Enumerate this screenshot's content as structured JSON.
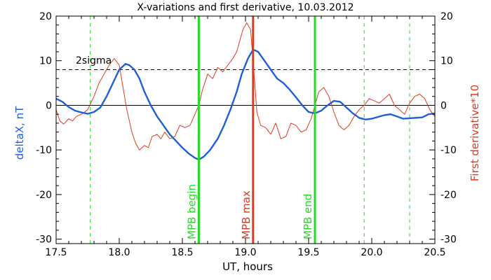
{
  "chart_data": {
    "type": "line",
    "title": "X-variations and first derivative, 10.03.2012",
    "xlabel": "UT, hours",
    "ylabel_left": "deltaX, nT",
    "ylabel_right": "First derivative*10",
    "xlim": [
      17.5,
      20.5
    ],
    "ylim": [
      -31,
      20
    ],
    "xticks": [
      17.5,
      18.0,
      18.5,
      19.0,
      19.5,
      20.0,
      20.5
    ],
    "yticks": [
      -30,
      -20,
      -10,
      0,
      10,
      20
    ],
    "grid": false,
    "threshold": {
      "label": "2sigma",
      "value": 8
    },
    "zero_line": 0,
    "colors": {
      "deltaX": "#1f5fd6",
      "derivative": "#e03a1e",
      "mpb_max": "#e03a1e",
      "mpb_bounds": "#22dd22",
      "dashed_markers": "#22dd22",
      "axes": "#000000"
    },
    "markers": [
      {
        "x": 18.63,
        "label": "MPB begin",
        "color": "#22dd22",
        "style": "solid"
      },
      {
        "x": 19.06,
        "label": "MPB max",
        "color": "#e03a1e",
        "style": "solid"
      },
      {
        "x": 19.55,
        "label": "MPB end",
        "color": "#22dd22",
        "style": "solid"
      }
    ],
    "dashed_markers": [
      17.77,
      19.94,
      20.3
    ],
    "series": [
      {
        "name": "deltaX, nT",
        "color": "#1f5fd6",
        "x": [
          17.5,
          17.55,
          17.6,
          17.65,
          17.7,
          17.75,
          17.8,
          17.85,
          17.9,
          17.95,
          18.0,
          18.05,
          18.08,
          18.12,
          18.16,
          18.2,
          18.25,
          18.3,
          18.35,
          18.4,
          18.45,
          18.5,
          18.55,
          18.6,
          18.63,
          18.67,
          18.72,
          18.78,
          18.83,
          18.88,
          18.93,
          18.97,
          19.02,
          19.06,
          19.1,
          19.15,
          19.2,
          19.25,
          19.3,
          19.35,
          19.4,
          19.45,
          19.5,
          19.55,
          19.6,
          19.65,
          19.7,
          19.75,
          19.8,
          19.85,
          19.9,
          19.95,
          20.0,
          20.05,
          20.1,
          20.15,
          20.2,
          20.25,
          20.3,
          20.35,
          20.4,
          20.45,
          20.5
        ],
        "y": [
          1.5,
          0.8,
          -0.4,
          -1.2,
          -1.6,
          -1.9,
          -1.5,
          -0.5,
          2.0,
          5.0,
          8.0,
          9.3,
          9.0,
          8.0,
          6.0,
          3.0,
          0.0,
          -2.5,
          -4.5,
          -6.5,
          -8.0,
          -9.5,
          -10.8,
          -11.8,
          -12.2,
          -11.5,
          -10.0,
          -7.5,
          -4.5,
          -1.0,
          3.0,
          7.0,
          10.5,
          12.5,
          12.0,
          10.0,
          8.0,
          6.0,
          5.0,
          3.5,
          1.8,
          0.0,
          -1.5,
          -1.8,
          -1.2,
          0.0,
          1.0,
          0.8,
          -0.5,
          -1.8,
          -2.8,
          -3.2,
          -3.0,
          -2.6,
          -2.2,
          -2.0,
          -2.5,
          -3.0,
          -2.9,
          -2.8,
          -2.7,
          -2.0,
          -1.8
        ]
      },
      {
        "name": "First derivative*10",
        "color": "#e03a1e",
        "x": [
          17.5,
          17.53,
          17.56,
          17.6,
          17.63,
          17.66,
          17.7,
          17.75,
          17.8,
          17.84,
          17.88,
          17.92,
          17.96,
          18.0,
          18.03,
          18.06,
          18.1,
          18.13,
          18.16,
          18.2,
          18.23,
          18.26,
          18.3,
          18.33,
          18.36,
          18.4,
          18.44,
          18.48,
          18.52,
          18.56,
          18.6,
          18.63,
          18.66,
          18.7,
          18.74,
          18.78,
          18.82,
          18.86,
          18.9,
          18.93,
          18.95,
          18.98,
          19.01,
          19.04,
          19.06,
          19.09,
          19.12,
          19.16,
          19.2,
          19.24,
          19.28,
          19.32,
          19.36,
          19.4,
          19.44,
          19.48,
          19.52,
          19.55,
          19.58,
          19.62,
          19.66,
          19.7,
          19.74,
          19.78,
          19.82,
          19.86,
          19.9,
          19.94,
          19.98,
          20.02,
          20.06,
          20.1,
          20.14,
          20.18,
          20.22,
          20.26,
          20.3,
          20.34,
          20.38,
          20.42,
          20.46,
          20.5
        ],
        "y": [
          -1.0,
          -3.5,
          -4.2,
          -3.0,
          -3.5,
          -2.5,
          -2.0,
          -1.0,
          2.0,
          5.0,
          7.0,
          9.0,
          10.5,
          9.0,
          4.0,
          -1.0,
          -6.0,
          -8.5,
          -10.0,
          -9.0,
          -9.5,
          -7.0,
          -6.5,
          -7.5,
          -6.0,
          -7.5,
          -7.0,
          -4.5,
          -5.0,
          -4.5,
          -2.0,
          0.0,
          3.5,
          7.0,
          6.0,
          8.5,
          7.5,
          9.0,
          10.5,
          12.0,
          14.0,
          17.0,
          18.5,
          17.0,
          10.0,
          -1.5,
          -4.5,
          -5.0,
          -6.5,
          -4.0,
          -7.5,
          -7.0,
          -4.0,
          -4.5,
          -6.0,
          -5.5,
          -3.0,
          0.0,
          3.0,
          4.0,
          2.0,
          -1.5,
          -4.5,
          -5.5,
          -4.5,
          -2.5,
          -1.0,
          0.0,
          1.5,
          1.0,
          0.5,
          1.5,
          2.5,
          0.0,
          -1.0,
          -2.0,
          0.5,
          2.0,
          2.5,
          1.5,
          -1.0,
          -2.5
        ]
      }
    ]
  }
}
